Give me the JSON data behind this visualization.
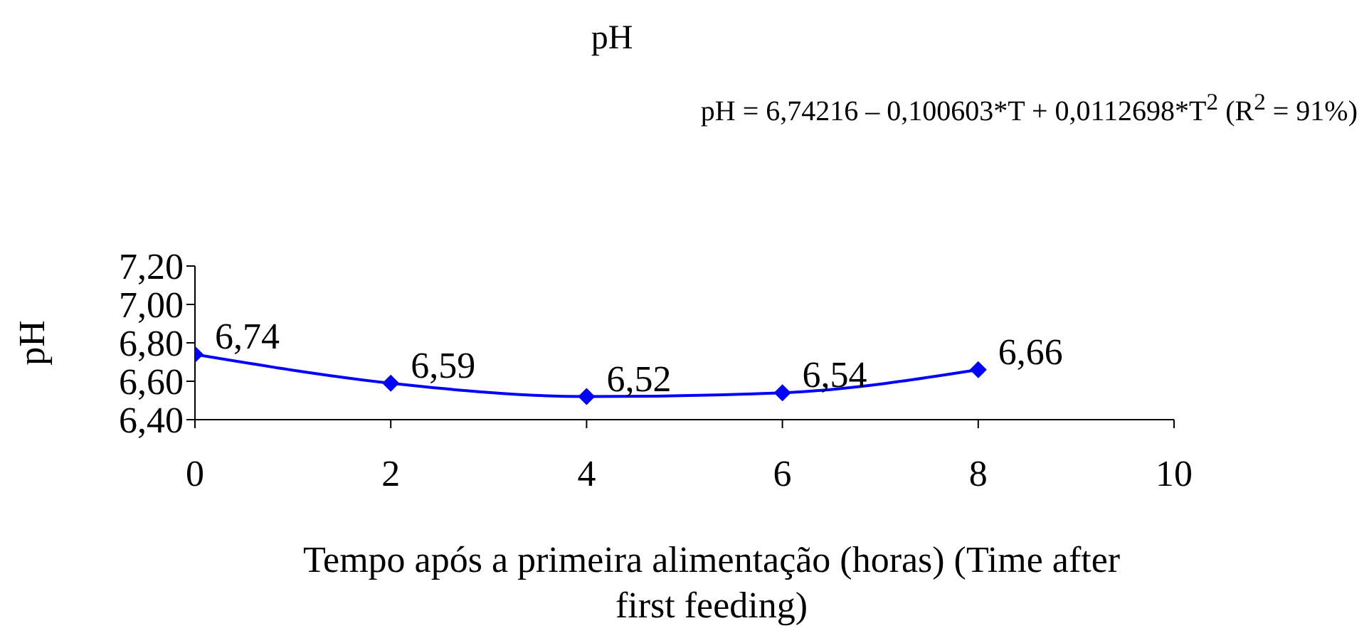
{
  "chart_data": {
    "type": "line",
    "title": "pH",
    "xlabel": "Tempo após a primeira alimentação (horas) (Time after first feeding)",
    "ylabel": "pH",
    "annotations": [
      "pH = 6,74216 – 0,100603*T + 0,0112698*T$^{2}$ (R$^{2}$ = 91%)"
    ],
    "x": [
      0,
      2,
      4,
      6,
      8
    ],
    "series": [
      {
        "color": "#0000ff",
        "values": [
          6.74,
          6.59,
          6.52,
          6.54,
          6.66
        ],
        "value_labels": [
          "6,74",
          "6,59",
          "6,52",
          "6,54",
          "6,66"
        ]
      }
    ],
    "xlim": [
      0,
      10
    ],
    "xticks": [
      0,
      2,
      4,
      6,
      8,
      10
    ],
    "ylim": [
      6.4,
      7.2
    ],
    "yticks": [
      {
        "value": 6.4,
        "label": "6,40"
      },
      {
        "value": 6.6,
        "label": "6,60"
      },
      {
        "value": 6.8,
        "label": "6,80"
      },
      {
        "value": 7.0,
        "label": "7,00"
      },
      {
        "value": 7.2,
        "label": "7,20"
      }
    ],
    "grid": false,
    "legend": false,
    "marker": "diamond",
    "line_style": "solid"
  }
}
